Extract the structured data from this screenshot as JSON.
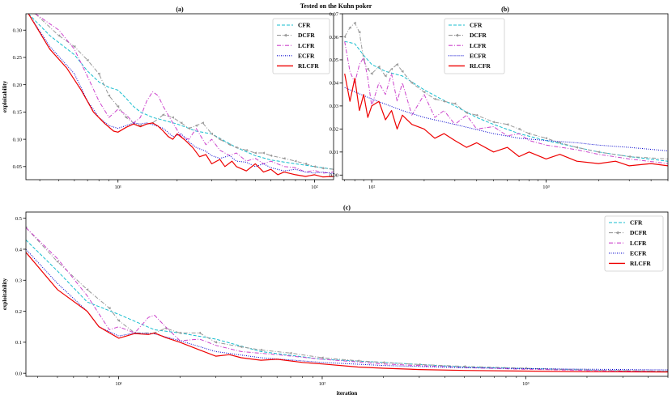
{
  "figure_title": "Tested on the Kuhn poker",
  "chart_data": [
    {
      "id": "a",
      "type": "line",
      "title": "(a)",
      "xscale": "log",
      "xlim": [
        3.4,
        125
      ],
      "ylim": [
        0.026,
        0.33
      ],
      "xlabel": "",
      "ylabel": "exploitability",
      "xticks": [
        {
          "v": 10,
          "label": "10¹"
        },
        {
          "v": 100,
          "label": "10²"
        }
      ],
      "yticks": [
        {
          "v": 0.05,
          "label": "0.05"
        },
        {
          "v": 0.1,
          "label": "0.10"
        },
        {
          "v": 0.15,
          "label": "0.15"
        },
        {
          "v": 0.2,
          "label": "0.20"
        },
        {
          "v": 0.25,
          "label": "0.25"
        },
        {
          "v": 0.3,
          "label": "0.30"
        }
      ],
      "legend_position": "top-right",
      "series": [
        {
          "name": "CFR",
          "color": "#17becf",
          "style": "dashed",
          "marker": "none",
          "x": [
            3.5,
            4.5,
            6,
            7,
            8,
            9,
            10,
            11,
            12,
            13,
            14,
            15,
            17,
            20,
            25,
            30,
            40,
            50,
            60,
            80,
            100,
            125
          ],
          "y": [
            0.33,
            0.29,
            0.255,
            0.225,
            0.205,
            0.195,
            0.19,
            0.175,
            0.16,
            0.15,
            0.145,
            0.14,
            0.135,
            0.128,
            0.115,
            0.11,
            0.085,
            0.07,
            0.062,
            0.055,
            0.05,
            0.045
          ]
        },
        {
          "name": "DCFR",
          "color": "#999999",
          "style": "dashdot",
          "marker": "<",
          "x": [
            3.8,
            5,
            6,
            7,
            8,
            9,
            10,
            11,
            12,
            13,
            15,
            17,
            19,
            21,
            23,
            25,
            27,
            30,
            33,
            37,
            40,
            45,
            50,
            55,
            60,
            70,
            80,
            90,
            100,
            110,
            125
          ],
          "y": [
            0.33,
            0.29,
            0.27,
            0.245,
            0.22,
            0.18,
            0.16,
            0.14,
            0.13,
            0.125,
            0.13,
            0.145,
            0.14,
            0.13,
            0.12,
            0.125,
            0.13,
            0.11,
            0.1,
            0.09,
            0.085,
            0.08,
            0.075,
            0.075,
            0.07,
            0.065,
            0.06,
            0.055,
            0.05,
            0.047,
            0.045
          ]
        },
        {
          "name": "LCFR",
          "color": "#cc44cc",
          "style": "dashdot",
          "marker": "none",
          "x": [
            3.8,
            5,
            6,
            7,
            8,
            9,
            10,
            11,
            12,
            13,
            14,
            15,
            16,
            17,
            19,
            21,
            23,
            25,
            28,
            30,
            33,
            37,
            40,
            45,
            50,
            55,
            60,
            70,
            80,
            90,
            100,
            110,
            125
          ],
          "y": [
            0.33,
            0.3,
            0.265,
            0.215,
            0.17,
            0.14,
            0.155,
            0.145,
            0.13,
            0.14,
            0.17,
            0.187,
            0.18,
            0.16,
            0.13,
            0.105,
            0.1,
            0.12,
            0.09,
            0.1,
            0.08,
            0.07,
            0.075,
            0.06,
            0.065,
            0.055,
            0.06,
            0.05,
            0.048,
            0.04,
            0.043,
            0.038,
            0.04
          ]
        },
        {
          "name": "ECFR",
          "color": "#0000cc",
          "style": "dotted",
          "marker": "none",
          "x": [
            3.5,
            4.5,
            6,
            7,
            8,
            9,
            10,
            11,
            12,
            13,
            14,
            15,
            17,
            19,
            21,
            23,
            25,
            28,
            30,
            33,
            37,
            40,
            45,
            50,
            55,
            60,
            70,
            80,
            90,
            100,
            110,
            125
          ],
          "y": [
            0.33,
            0.27,
            0.22,
            0.17,
            0.14,
            0.125,
            0.12,
            0.125,
            0.13,
            0.128,
            0.13,
            0.127,
            0.12,
            0.105,
            0.11,
            0.095,
            0.085,
            0.078,
            0.07,
            0.065,
            0.07,
            0.06,
            0.058,
            0.05,
            0.055,
            0.048,
            0.042,
            0.045,
            0.04,
            0.038,
            0.04,
            0.037
          ]
        },
        {
          "name": "RLCFR",
          "color": "#ee0000",
          "style": "solid",
          "marker": "none",
          "x": [
            3.5,
            4.5,
            5.5,
            6.5,
            7.5,
            8.5,
            9.5,
            10,
            11,
            12,
            13,
            14,
            15,
            16,
            17,
            18,
            19,
            20,
            22,
            24,
            26,
            28,
            30,
            33,
            35,
            38,
            40,
            45,
            50,
            55,
            60,
            65,
            70,
            80,
            90,
            100,
            110,
            125
          ],
          "y": [
            0.33,
            0.265,
            0.23,
            0.19,
            0.15,
            0.13,
            0.115,
            0.113,
            0.122,
            0.128,
            0.123,
            0.128,
            0.13,
            0.124,
            0.115,
            0.105,
            0.1,
            0.11,
            0.098,
            0.085,
            0.068,
            0.072,
            0.055,
            0.063,
            0.05,
            0.06,
            0.05,
            0.042,
            0.055,
            0.04,
            0.045,
            0.035,
            0.04,
            0.035,
            0.032,
            0.035,
            0.031,
            0.032
          ]
        }
      ]
    },
    {
      "id": "b",
      "type": "line",
      "title": "(b)",
      "xscale": "log",
      "xlim": [
        68,
        5000
      ],
      "ylim": [
        -0.002,
        0.07
      ],
      "xlabel": "",
      "ylabel": "",
      "xticks": [
        {
          "v": 100,
          "label": "10²"
        },
        {
          "v": 1000,
          "label": "10³"
        }
      ],
      "yticks": [
        {
          "v": 0.0,
          "label": "0.00"
        },
        {
          "v": 0.01,
          "label": "0.01"
        },
        {
          "v": 0.02,
          "label": "0.02"
        },
        {
          "v": 0.03,
          "label": "0.03"
        },
        {
          "v": 0.04,
          "label": "0.04"
        },
        {
          "v": 0.05,
          "label": "0.05"
        },
        {
          "v": 0.06,
          "label": "0.06"
        },
        {
          "v": 0.07,
          "label": "0.07"
        }
      ],
      "legend_position": "top-right",
      "series": [
        {
          "name": "CFR",
          "color": "#17becf",
          "style": "dashed",
          "marker": "none",
          "x": [
            70,
            80,
            90,
            100,
            120,
            150,
            200,
            250,
            300,
            400,
            500,
            700,
            1000,
            1500,
            2000,
            3000,
            5000
          ],
          "y": [
            0.058,
            0.057,
            0.052,
            0.048,
            0.045,
            0.043,
            0.037,
            0.033,
            0.03,
            0.025,
            0.022,
            0.018,
            0.015,
            0.012,
            0.01,
            0.008,
            0.006
          ]
        },
        {
          "name": "DCFR",
          "color": "#999999",
          "style": "dashdot",
          "marker": "<",
          "x": [
            70,
            75,
            80,
            85,
            90,
            95,
            100,
            110,
            120,
            130,
            140,
            150,
            170,
            200,
            230,
            260,
            300,
            350,
            400,
            500,
            600,
            700,
            800,
            1000,
            1200,
            1500,
            2000,
            3000,
            5000
          ],
          "y": [
            0.06,
            0.064,
            0.066,
            0.062,
            0.05,
            0.046,
            0.044,
            0.047,
            0.043,
            0.046,
            0.048,
            0.045,
            0.04,
            0.036,
            0.033,
            0.032,
            0.031,
            0.027,
            0.026,
            0.023,
            0.022,
            0.02,
            0.018,
            0.016,
            0.014,
            0.012,
            0.01,
            0.008,
            0.007
          ]
        },
        {
          "name": "LCFR",
          "color": "#cc44cc",
          "style": "dashdot",
          "marker": "none",
          "x": [
            70,
            75,
            80,
            85,
            90,
            95,
            100,
            110,
            120,
            130,
            140,
            150,
            170,
            200,
            230,
            260,
            300,
            350,
            400,
            500,
            600,
            700,
            800,
            1000,
            1500,
            2000,
            3000,
            5000
          ],
          "y": [
            0.058,
            0.045,
            0.04,
            0.048,
            0.051,
            0.042,
            0.03,
            0.04,
            0.035,
            0.044,
            0.032,
            0.04,
            0.026,
            0.035,
            0.025,
            0.028,
            0.022,
            0.026,
            0.02,
            0.021,
            0.017,
            0.018,
            0.015,
            0.013,
            0.011,
            0.009,
            0.007,
            0.005
          ]
        },
        {
          "name": "ECFR",
          "color": "#0000cc",
          "style": "dotted",
          "marker": "none",
          "x": [
            70,
            100,
            150,
            200,
            300,
            500,
            700,
            1000,
            1500,
            2000,
            3000,
            5000
          ],
          "y": [
            0.038,
            0.033,
            0.028,
            0.025,
            0.022,
            0.018,
            0.016,
            0.015,
            0.014,
            0.013,
            0.012,
            0.0105
          ]
        },
        {
          "name": "RLCFR",
          "color": "#ee0000",
          "style": "solid",
          "marker": "none",
          "x": [
            70,
            75,
            80,
            85,
            90,
            95,
            100,
            110,
            120,
            130,
            140,
            150,
            170,
            200,
            230,
            260,
            300,
            350,
            400,
            500,
            600,
            700,
            800,
            1000,
            1200,
            1500,
            2000,
            2500,
            3000,
            4000,
            5000
          ],
          "y": [
            0.044,
            0.032,
            0.042,
            0.028,
            0.035,
            0.025,
            0.03,
            0.032,
            0.024,
            0.028,
            0.02,
            0.026,
            0.022,
            0.02,
            0.016,
            0.018,
            0.015,
            0.012,
            0.014,
            0.01,
            0.012,
            0.008,
            0.01,
            0.007,
            0.009,
            0.006,
            0.005,
            0.006,
            0.004,
            0.005,
            0.004
          ]
        }
      ]
    },
    {
      "id": "c",
      "type": "line",
      "title": "(c)",
      "xscale": "log",
      "xlim": [
        3.5,
        5000
      ],
      "ylim": [
        -0.01,
        0.52
      ],
      "xlabel": "iteration",
      "ylabel": "exploitability",
      "xticks": [
        {
          "v": 10,
          "label": "10¹"
        },
        {
          "v": 100,
          "label": "10²"
        },
        {
          "v": 1000,
          "label": "10³"
        }
      ],
      "yticks": [
        {
          "v": 0.0,
          "label": "0.0"
        },
        {
          "v": 0.1,
          "label": "0.1"
        },
        {
          "v": 0.2,
          "label": "0.2"
        },
        {
          "v": 0.3,
          "label": "0.3"
        },
        {
          "v": 0.4,
          "label": "0.4"
        },
        {
          "v": 0.5,
          "label": "0.5"
        }
      ],
      "legend_position": "top-right",
      "series": [
        {
          "name": "CFR",
          "color": "#17becf",
          "style": "dashed",
          "marker": "none",
          "x": [
            3.5,
            5,
            7,
            10,
            15,
            20,
            30,
            50,
            100,
            200,
            500,
            1000,
            2000,
            5000
          ],
          "y": [
            0.43,
            0.33,
            0.23,
            0.19,
            0.14,
            0.13,
            0.11,
            0.07,
            0.045,
            0.035,
            0.02,
            0.015,
            0.01,
            0.006
          ]
        },
        {
          "name": "DCFR",
          "color": "#999999",
          "style": "dashdot",
          "marker": "<",
          "x": [
            3.5,
            5,
            7,
            9,
            10,
            12,
            15,
            17,
            20,
            25,
            30,
            40,
            50,
            70,
            100,
            150,
            200,
            300,
            500,
            1000,
            2000,
            5000
          ],
          "y": [
            0.47,
            0.36,
            0.27,
            0.21,
            0.17,
            0.13,
            0.13,
            0.145,
            0.13,
            0.13,
            0.1,
            0.085,
            0.075,
            0.065,
            0.05,
            0.04,
            0.035,
            0.028,
            0.022,
            0.016,
            0.01,
            0.007
          ]
        },
        {
          "name": "LCFR",
          "color": "#cc44cc",
          "style": "dashdot",
          "marker": "none",
          "x": [
            3.5,
            5,
            7,
            9,
            10,
            12,
            14,
            15,
            17,
            20,
            25,
            30,
            40,
            60,
            100,
            200,
            500,
            1000,
            2000,
            5000
          ],
          "y": [
            0.47,
            0.37,
            0.25,
            0.14,
            0.15,
            0.13,
            0.18,
            0.187,
            0.15,
            0.105,
            0.11,
            0.09,
            0.07,
            0.06,
            0.045,
            0.03,
            0.018,
            0.013,
            0.009,
            0.005
          ]
        },
        {
          "name": "ECFR",
          "color": "#0000cc",
          "style": "dotted",
          "marker": "none",
          "x": [
            3.5,
            5,
            7,
            8,
            10,
            12,
            15,
            20,
            30,
            50,
            100,
            200,
            500,
            1000,
            2000,
            5000
          ],
          "y": [
            0.4,
            0.29,
            0.2,
            0.15,
            0.12,
            0.13,
            0.127,
            0.105,
            0.07,
            0.05,
            0.035,
            0.025,
            0.018,
            0.015,
            0.013,
            0.011
          ]
        },
        {
          "name": "RLCFR",
          "color": "#ee0000",
          "style": "solid",
          "marker": "none",
          "x": [
            3.5,
            5,
            7,
            8,
            10,
            12,
            14,
            15,
            17,
            20,
            25,
            30,
            35,
            40,
            50,
            60,
            80,
            100,
            150,
            200,
            300,
            500,
            1000,
            2000,
            5000
          ],
          "y": [
            0.39,
            0.27,
            0.2,
            0.15,
            0.113,
            0.128,
            0.125,
            0.13,
            0.115,
            0.1,
            0.075,
            0.055,
            0.06,
            0.05,
            0.042,
            0.045,
            0.035,
            0.03,
            0.02,
            0.016,
            0.012,
            0.009,
            0.007,
            0.005,
            0.004
          ]
        }
      ]
    }
  ]
}
